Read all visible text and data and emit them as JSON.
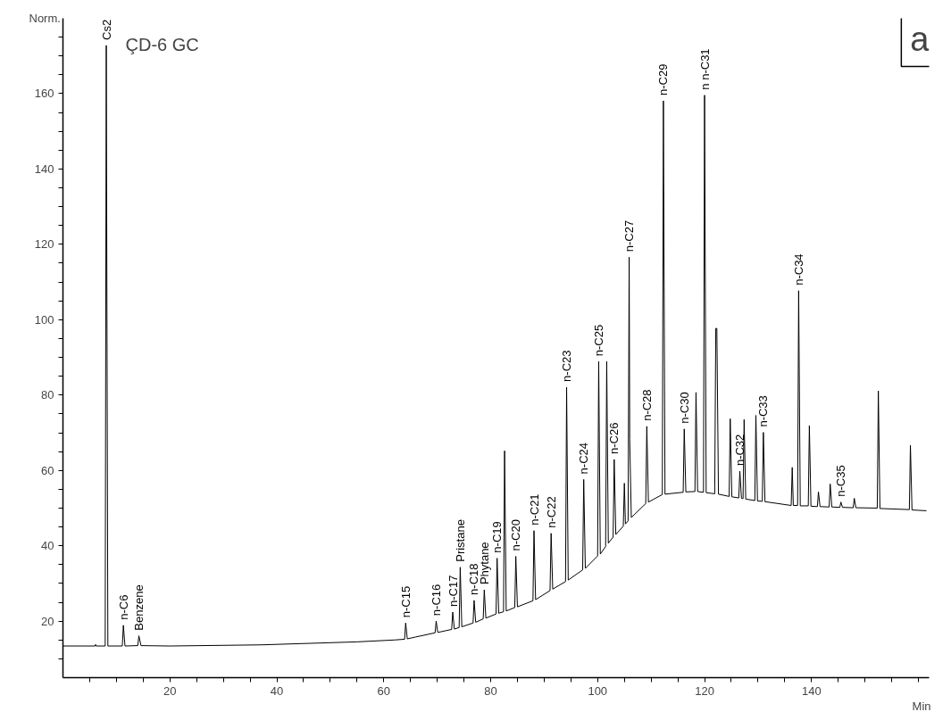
{
  "chart_data": {
    "type": "line",
    "title": "ÇD-6 GC",
    "xlabel": "Min",
    "ylabel": "Norm.",
    "color": "#000000",
    "line_style": "solid",
    "grid": false,
    "x": [
      0,
      6.0,
      6.1,
      6.2,
      7.9,
      8.1,
      8.4,
      11.1,
      11.3,
      11.6,
      14.0,
      14.2,
      14.6,
      20,
      37,
      55,
      62,
      63.9,
      64.1,
      64.4,
      66,
      69.6,
      69.8,
      70.1,
      72.7,
      72.9,
      73.2,
      74.1,
      74.3,
      74.6,
      76.7,
      76.9,
      77.2,
      78.6,
      78.8,
      79.1,
      81.0,
      81.2,
      81.5,
      82.4,
      82.6,
      82.9,
      84.5,
      84.7,
      85.0,
      87.9,
      88.1,
      88.4,
      91.1,
      91.3,
      91.6,
      94.0,
      94.2,
      94.5,
      97.2,
      97.4,
      97.7,
      100.0,
      100.2,
      100.5,
      101.5,
      101.7,
      102.0,
      102.9,
      103.1,
      103.4,
      104.8,
      105.0,
      105.2,
      105.7,
      105.9,
      106.0,
      106.3,
      109.0,
      109.2,
      109.5,
      112.1,
      112.3,
      112.6,
      116.0,
      116.2,
      116.5,
      118.2,
      118.4,
      118.7,
      119.8,
      120.0,
      120.3,
      121.9,
      122.1,
      122.3,
      122.6,
      124.6,
      124.8,
      125.1,
      126.4,
      126.6,
      126.9,
      127.2,
      127.4,
      127.7,
      129.4,
      129.6,
      129.9,
      130.8,
      131.0,
      131.3,
      136.2,
      136.4,
      136.6,
      137.4,
      137.6,
      137.9,
      139.4,
      139.6,
      139.9,
      141.1,
      141.3,
      141.6,
      143.3,
      143.5,
      143.8,
      145.3,
      145.5,
      145.8,
      147.8,
      148.0,
      148.3,
      152.3,
      152.5,
      152.8,
      158.3,
      158.5,
      158.8,
      161.5
    ],
    "values": [
      13.4,
      13.4,
      13.8,
      13.4,
      13.4,
      172.8,
      13.4,
      13.4,
      18.9,
      13.4,
      13.5,
      16.1,
      13.5,
      13.4,
      13.7,
      14.5,
      15.0,
      15.2,
      19.5,
      15.3,
      15.8,
      16.9,
      20.0,
      17.0,
      17.8,
      22.4,
      17.9,
      18.3,
      34.3,
      18.5,
      19.5,
      25.5,
      19.7,
      20.6,
      28.3,
      20.8,
      21.9,
      36.7,
      22.1,
      22.5,
      65.2,
      22.7,
      23.6,
      37.2,
      23.8,
      25.4,
      44.0,
      25.7,
      28.1,
      43.3,
      28.5,
      30.5,
      82.1,
      30.9,
      33.6,
      57.6,
      34.0,
      37.3,
      88.9,
      37.8,
      39.8,
      88.9,
      40.7,
      42.3,
      62.9,
      43.0,
      45.2,
      56.6,
      45.8,
      46.6,
      116.6,
      68.3,
      47.5,
      51.2,
      71.7,
      51.6,
      53.6,
      158.1,
      53.7,
      54.2,
      71.0,
      54.3,
      54.4,
      80.7,
      54.4,
      54.2,
      159.6,
      54.1,
      53.8,
      97.7,
      97.7,
      53.7,
      53.1,
      73.7,
      53.0,
      52.7,
      59.8,
      52.6,
      52.5,
      73.5,
      52.4,
      52.0,
      74.6,
      51.9,
      51.8,
      70.1,
      51.7,
      50.7,
      60.8,
      50.7,
      50.7,
      107.7,
      50.6,
      50.6,
      71.9,
      50.5,
      50.4,
      54.3,
      50.4,
      50.3,
      56.4,
      50.3,
      50.2,
      51.6,
      50.2,
      50.1,
      52.6,
      50.1,
      50.0,
      81.1,
      49.9,
      49.6,
      66.7,
      49.5,
      49.3
    ],
    "xlim": [
      0,
      162
    ],
    "ylim": [
      5,
      180
    ],
    "xticks": [
      {
        "value": 5,
        "label": null
      },
      {
        "value": 10,
        "label": null
      },
      {
        "value": 15,
        "label": null
      },
      20,
      {
        "value": 25,
        "label": null
      },
      {
        "value": 30,
        "label": null
      },
      {
        "value": 35,
        "label": null
      },
      40,
      {
        "value": 45,
        "label": null
      },
      {
        "value": 50,
        "label": null
      },
      {
        "value": 55,
        "label": null
      },
      60,
      {
        "value": 65,
        "label": null
      },
      {
        "value": 70,
        "label": null
      },
      {
        "value": 75,
        "label": null
      },
      80,
      {
        "value": 85,
        "label": null
      },
      {
        "value": 90,
        "label": null
      },
      {
        "value": 95,
        "label": null
      },
      100,
      {
        "value": 105,
        "label": null
      },
      {
        "value": 110,
        "label": null
      },
      {
        "value": 115,
        "label": null
      },
      120,
      {
        "value": 125,
        "label": null
      },
      {
        "value": 130,
        "label": null
      },
      {
        "value": 135,
        "label": null
      },
      140,
      {
        "value": 145,
        "label": null
      },
      {
        "value": 150,
        "label": null
      },
      {
        "value": 155,
        "label": null
      },
      {
        "value": 160,
        "label": null
      }
    ],
    "yticks": [
      {
        "value": 10,
        "label": null
      },
      {
        "value": 15,
        "label": null
      },
      20,
      {
        "value": 25,
        "label": null
      },
      {
        "value": 30,
        "label": null
      },
      {
        "value": 35,
        "label": null
      },
      40,
      {
        "value": 45,
        "label": null
      },
      {
        "value": 50,
        "label": null
      },
      {
        "value": 55,
        "label": null
      },
      60,
      {
        "value": 65,
        "label": null
      },
      {
        "value": 70,
        "label": null
      },
      {
        "value": 75,
        "label": null
      },
      80,
      {
        "value": 85,
        "label": null
      },
      {
        "value": 90,
        "label": null
      },
      {
        "value": 95,
        "label": null
      },
      100,
      {
        "value": 105,
        "label": null
      },
      {
        "value": 110,
        "label": null
      },
      {
        "value": 115,
        "label": null
      },
      120,
      {
        "value": 125,
        "label": null
      },
      {
        "value": 130,
        "label": null
      },
      {
        "value": 135,
        "label": null
      },
      140,
      {
        "value": 145,
        "label": null
      },
      {
        "value": 150,
        "label": null
      },
      {
        "value": 155,
        "label": null
      },
      160,
      {
        "value": 165,
        "label": null
      },
      {
        "value": 170,
        "label": null
      },
      {
        "value": 175,
        "label": null
      }
    ],
    "annotations": [
      {
        "text": "Cs2",
        "x": 8.1,
        "y": 172.8
      },
      {
        "text": "n-C6",
        "x": 11.3,
        "y": 18.9
      },
      {
        "text": "Benzene",
        "x": 14.2,
        "y": 16.1
      },
      {
        "text": "n-C15",
        "x": 64.1,
        "y": 19.5
      },
      {
        "text": "n-C16",
        "x": 69.8,
        "y": 20.0
      },
      {
        "text": "n-C17",
        "x": 72.9,
        "y": 22.4
      },
      {
        "text": "Pristane",
        "x": 74.3,
        "y": 34.3
      },
      {
        "text": "n-C18",
        "x": 76.9,
        "y": 25.5
      },
      {
        "text": "Phytane",
        "x": 78.8,
        "y": 28.3
      },
      {
        "text": "n-C19",
        "x": 81.2,
        "y": 36.7
      },
      {
        "text": "n-C20",
        "x": 84.7,
        "y": 37.2
      },
      {
        "text": "n-C21",
        "x": 88.1,
        "y": 44.0
      },
      {
        "text": "n-C22",
        "x": 91.3,
        "y": 43.3
      },
      {
        "text": "n-C23",
        "x": 94.2,
        "y": 82.1
      },
      {
        "text": "n-C24",
        "x": 97.4,
        "y": 57.6
      },
      {
        "text": "n-C25",
        "x": 100.2,
        "y": 88.9
      },
      {
        "text": "n-C26",
        "x": 103.1,
        "y": 62.9
      },
      {
        "text": "n-C27",
        "x": 105.9,
        "y": 116.6
      },
      {
        "text": "n-C28",
        "x": 109.2,
        "y": 71.7
      },
      {
        "text": "n-C29",
        "x": 112.3,
        "y": 158.1
      },
      {
        "text": "n-C30",
        "x": 116.2,
        "y": 71.0
      },
      {
        "text": "n n-C31",
        "x": 120.0,
        "y": 159.6
      },
      {
        "text": "n-C32",
        "x": 126.6,
        "y": 59.8
      },
      {
        "text": "n-C33",
        "x": 131.0,
        "y": 70.1
      },
      {
        "text": "n-C34",
        "x": 137.6,
        "y": 107.7
      },
      {
        "text": "n-C35",
        "x": 145.5,
        "y": 51.6
      },
      "a"
    ]
  }
}
